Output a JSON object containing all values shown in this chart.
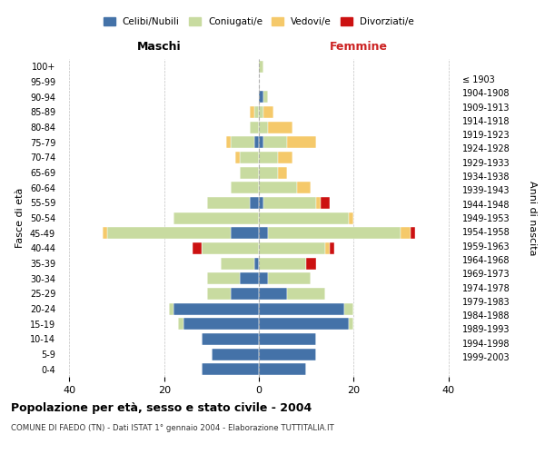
{
  "age_groups": [
    "0-4",
    "5-9",
    "10-14",
    "15-19",
    "20-24",
    "25-29",
    "30-34",
    "35-39",
    "40-44",
    "45-49",
    "50-54",
    "55-59",
    "60-64",
    "65-69",
    "70-74",
    "75-79",
    "80-84",
    "85-89",
    "90-94",
    "95-99",
    "100+"
  ],
  "birth_years": [
    "1999-2003",
    "1994-1998",
    "1989-1993",
    "1984-1988",
    "1979-1983",
    "1974-1978",
    "1969-1973",
    "1964-1968",
    "1959-1963",
    "1954-1958",
    "1949-1953",
    "1944-1948",
    "1939-1943",
    "1934-1938",
    "1929-1933",
    "1924-1928",
    "1919-1923",
    "1914-1918",
    "1909-1913",
    "1904-1908",
    "≤ 1903"
  ],
  "colors": {
    "celibi": "#4472a8",
    "coniugati": "#c8dba0",
    "vedovi": "#f5c96a",
    "divorziati": "#cc1111"
  },
  "males": {
    "celibi": [
      12,
      10,
      12,
      16,
      18,
      6,
      4,
      1,
      0,
      6,
      0,
      2,
      0,
      0,
      0,
      1,
      0,
      0,
      0,
      0,
      0
    ],
    "coniugati": [
      0,
      0,
      0,
      1,
      1,
      5,
      7,
      7,
      12,
      26,
      18,
      9,
      6,
      4,
      4,
      5,
      2,
      1,
      0,
      0,
      0
    ],
    "vedovi": [
      0,
      0,
      0,
      0,
      0,
      0,
      0,
      0,
      0,
      1,
      0,
      0,
      0,
      0,
      1,
      1,
      0,
      1,
      0,
      0,
      0
    ],
    "divorziati": [
      0,
      0,
      0,
      0,
      0,
      0,
      0,
      0,
      2,
      0,
      0,
      0,
      0,
      0,
      0,
      0,
      0,
      0,
      0,
      0,
      0
    ]
  },
  "females": {
    "nubili": [
      10,
      12,
      12,
      19,
      18,
      6,
      2,
      0,
      0,
      2,
      0,
      1,
      0,
      0,
      0,
      1,
      0,
      0,
      1,
      0,
      0
    ],
    "coniugate": [
      0,
      0,
      0,
      1,
      2,
      8,
      9,
      10,
      14,
      28,
      19,
      11,
      8,
      4,
      4,
      5,
      2,
      1,
      1,
      0,
      1
    ],
    "vedove": [
      0,
      0,
      0,
      0,
      0,
      0,
      0,
      0,
      1,
      2,
      1,
      1,
      3,
      2,
      3,
      6,
      5,
      2,
      0,
      0,
      0
    ],
    "divorziate": [
      0,
      0,
      0,
      0,
      0,
      0,
      0,
      2,
      1,
      1,
      0,
      2,
      0,
      0,
      0,
      0,
      0,
      0,
      0,
      0,
      0
    ]
  },
  "title": "Popolazione per età, sesso e stato civile - 2004",
  "subtitle": "COMUNE DI FAEDO (TN) - Dati ISTAT 1° gennaio 2004 - Elaborazione TUTTITALIA.IT",
  "xlabel_left": "Maschi",
  "xlabel_right": "Femmine",
  "ylabel_left": "Fasce di età",
  "ylabel_right": "Anni di nascita",
  "xlim": 42,
  "legend_labels": [
    "Celibi/Nubili",
    "Coniugati/e",
    "Vedovi/e",
    "Divorziati/e"
  ]
}
